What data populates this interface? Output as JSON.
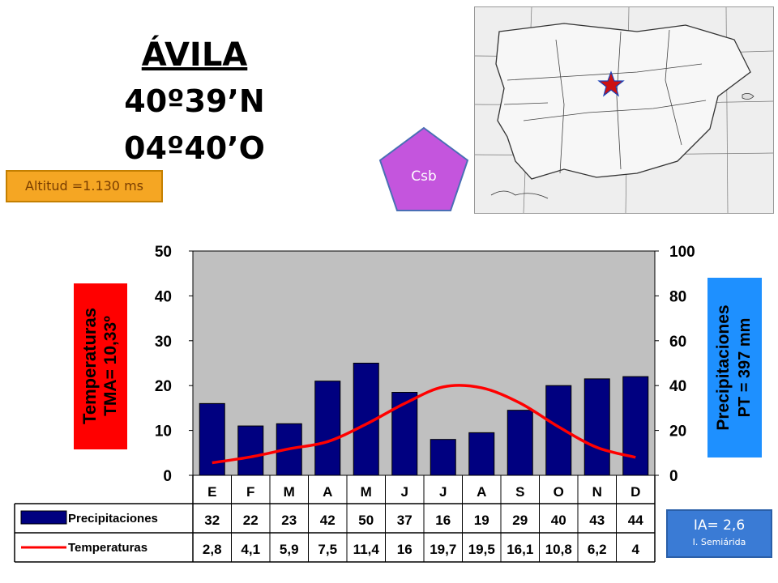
{
  "header": {
    "station": "ÁVILA",
    "latitude": "40º39’N",
    "longitude": "04º40’O",
    "altitude": "Altitud =1.130 ms",
    "climate_type": "Csb"
  },
  "labels": {
    "temp_title": "Temperaturas",
    "temp_mean": "TMA= 10,33º",
    "prec_title": "Precipitaciones",
    "prec_total": "PT = 397 mm"
  },
  "aridity": {
    "value": "IA= 2,6",
    "category": "I. Semiárida"
  },
  "colors": {
    "bar": "#000080",
    "line": "#ff0000",
    "plot_bg": "#c0c0c0",
    "temp_box": "#ff0000",
    "prec_box": "#1e90ff",
    "altitude_box": "#f5a623",
    "pentagon": "#c455dd",
    "ia_box": "#3a7bd5"
  },
  "chart_data": {
    "type": "bar+line",
    "categories": [
      "E",
      "F",
      "M",
      "A",
      "M",
      "J",
      "J",
      "A",
      "S",
      "O",
      "N",
      "D"
    ],
    "series": [
      {
        "name": "Precipitaciones",
        "type": "bar",
        "axis": "right",
        "values": [
          32,
          22,
          23,
          42,
          50,
          37,
          16,
          19,
          29,
          40,
          43,
          44
        ]
      },
      {
        "name": "Temperaturas",
        "type": "line",
        "axis": "left",
        "values": [
          2.8,
          4.1,
          5.9,
          7.5,
          11.4,
          16,
          19.7,
          19.5,
          16.1,
          10.8,
          6.2,
          4
        ]
      }
    ],
    "table": {
      "precip": [
        "32",
        "22",
        "23",
        "42",
        "50",
        "37",
        "16",
        "19",
        "29",
        "40",
        "43",
        "44"
      ],
      "temp": [
        "2,8",
        "4,1",
        "5,9",
        "7,5",
        "11,4",
        "16",
        "19,7",
        "19,5",
        "16,1",
        "10,8",
        "6,2",
        "4"
      ]
    },
    "y_left": {
      "min": 0,
      "max": 50,
      "ticks": [
        0,
        10,
        20,
        30,
        40,
        50
      ]
    },
    "y_right": {
      "min": 0,
      "max": 100,
      "ticks": [
        0,
        20,
        40,
        60,
        80,
        100
      ]
    },
    "grid": false
  }
}
